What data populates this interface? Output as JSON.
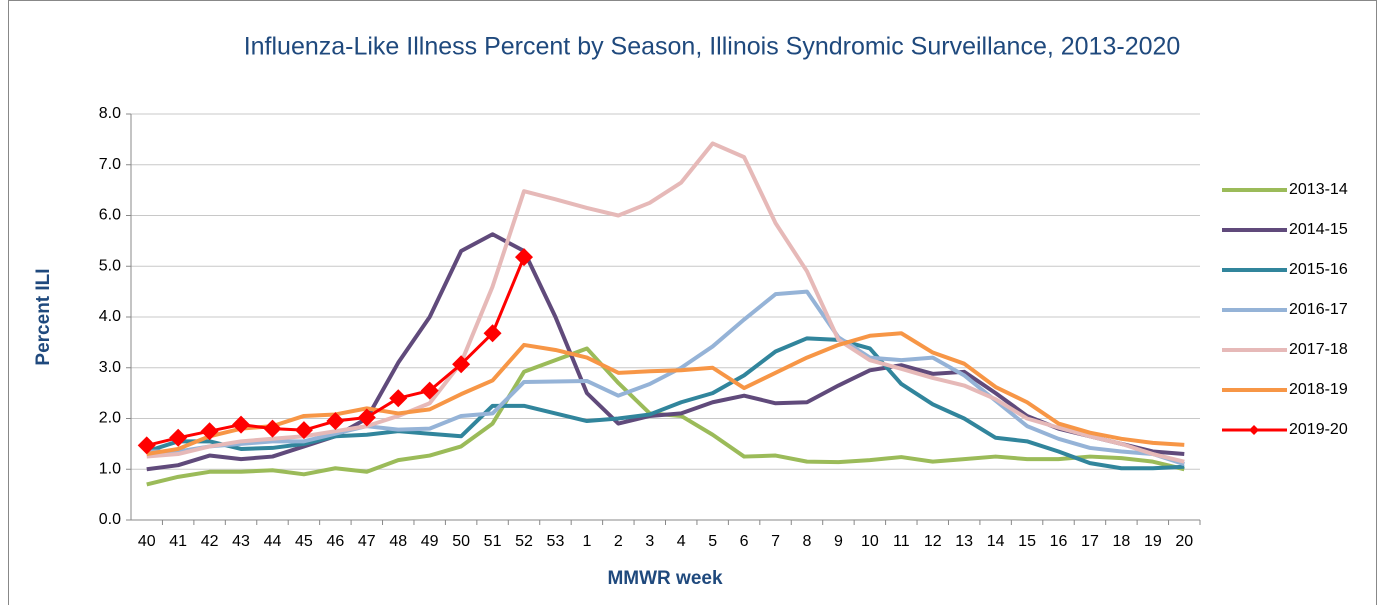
{
  "chart_data": {
    "type": "line",
    "title": "Influenza-Like Illness Percent by Season, Illinois Syndromic Surveillance, 2013-2020",
    "x_label": "MMWR week",
    "y_label": "Percent ILI",
    "categories": [
      "40",
      "41",
      "42",
      "43",
      "44",
      "45",
      "46",
      "47",
      "48",
      "49",
      "50",
      "51",
      "52",
      "53",
      "1",
      "2",
      "3",
      "4",
      "5",
      "6",
      "7",
      "8",
      "9",
      "10",
      "11",
      "12",
      "13",
      "14",
      "15",
      "16",
      "17",
      "18",
      "19",
      "20"
    ],
    "ylim": [
      0,
      8
    ],
    "yticks": [
      {
        "value": 0,
        "label": "0.0"
      },
      {
        "value": 1,
        "label": "1.0"
      },
      {
        "value": 2,
        "label": "2.0"
      },
      {
        "value": 3,
        "label": "3.0"
      },
      {
        "value": 4,
        "label": "4.0"
      },
      {
        "value": 5,
        "label": "5.0"
      },
      {
        "value": 6,
        "label": "6.0"
      },
      {
        "value": 7,
        "label": "7.0"
      },
      {
        "value": 8,
        "label": "8.0"
      }
    ],
    "grid": true,
    "legend": "right",
    "series": [
      {
        "name": "2013-14",
        "color": "#9bbb59",
        "values": [
          0.7,
          0.85,
          0.95,
          0.95,
          0.98,
          0.9,
          1.02,
          0.95,
          1.18,
          1.27,
          1.45,
          1.9,
          2.92,
          3.15,
          3.38,
          2.7,
          2.1,
          2.05,
          1.68,
          1.25,
          1.27,
          1.15,
          1.14,
          1.18,
          1.24,
          1.15,
          1.2,
          1.25,
          1.2,
          1.2,
          1.25,
          1.22,
          1.15,
          1.0
        ]
      },
      {
        "name": "2014-15",
        "color": "#604a7b",
        "values": [
          1.0,
          1.08,
          1.27,
          1.2,
          1.25,
          1.45,
          1.65,
          2.0,
          3.1,
          4.0,
          5.3,
          5.63,
          5.3,
          4.0,
          2.5,
          1.9,
          2.05,
          2.1,
          2.32,
          2.45,
          2.3,
          2.32,
          2.65,
          2.95,
          3.05,
          2.88,
          2.92,
          2.5,
          2.05,
          1.8,
          1.65,
          1.5,
          1.35,
          1.3
        ]
      },
      {
        "name": "2015-16",
        "color": "#31859c",
        "values": [
          1.35,
          1.55,
          1.55,
          1.4,
          1.42,
          1.5,
          1.65,
          1.68,
          1.75,
          1.7,
          1.65,
          2.25,
          2.25,
          2.1,
          1.95,
          2.0,
          2.08,
          2.32,
          2.5,
          2.85,
          3.32,
          3.58,
          3.55,
          3.38,
          2.68,
          2.28,
          2.0,
          1.62,
          1.55,
          1.35,
          1.12,
          1.02,
          1.02,
          1.05
        ]
      },
      {
        "name": "2016-17",
        "color": "#95b3d7",
        "values": [
          1.35,
          1.35,
          1.45,
          1.5,
          1.55,
          1.55,
          1.7,
          1.85,
          1.78,
          1.8,
          2.05,
          2.1,
          2.72,
          2.73,
          2.74,
          2.45,
          2.68,
          3.0,
          3.42,
          3.95,
          4.45,
          4.5,
          3.6,
          3.2,
          3.15,
          3.2,
          2.85,
          2.35,
          1.85,
          1.6,
          1.42,
          1.35,
          1.3,
          1.1
        ]
      },
      {
        "name": "2017-18",
        "color": "#e6b9b8",
        "values": [
          1.25,
          1.3,
          1.45,
          1.55,
          1.6,
          1.65,
          1.75,
          1.85,
          2.05,
          2.3,
          3.1,
          4.6,
          6.48,
          6.32,
          6.15,
          6.0,
          6.25,
          6.65,
          7.42,
          7.15,
          5.85,
          4.9,
          3.55,
          3.15,
          2.98,
          2.8,
          2.65,
          2.38,
          2.0,
          1.82,
          1.65,
          1.5,
          1.3,
          1.15
        ]
      },
      {
        "name": "2018-19",
        "color": "#f79646",
        "values": [
          1.3,
          1.4,
          1.65,
          1.8,
          1.85,
          2.05,
          2.08,
          2.2,
          2.1,
          2.18,
          2.48,
          2.75,
          3.45,
          3.35,
          3.2,
          2.9,
          2.93,
          2.95,
          3.0,
          2.6,
          2.9,
          3.2,
          3.45,
          3.63,
          3.68,
          3.3,
          3.08,
          2.62,
          2.32,
          1.9,
          1.72,
          1.6,
          1.52,
          1.48
        ]
      },
      {
        "name": "2019-20",
        "color": "#ff0000",
        "marker": "diamond",
        "values": [
          1.47,
          1.62,
          1.75,
          1.88,
          1.8,
          1.77,
          1.95,
          2.02,
          2.4,
          2.55,
          3.07,
          3.68,
          5.18,
          null,
          null,
          null,
          null,
          null,
          null,
          null,
          null,
          null,
          null,
          null,
          null,
          null,
          null,
          null,
          null,
          null,
          null,
          null,
          null,
          null
        ]
      }
    ]
  }
}
